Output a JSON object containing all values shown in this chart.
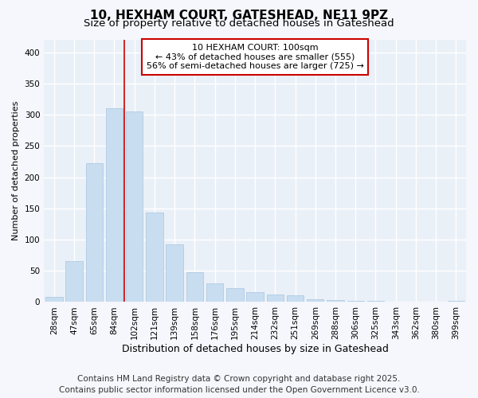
{
  "title": "10, HEXHAM COURT, GATESHEAD, NE11 9PZ",
  "subtitle": "Size of property relative to detached houses in Gateshead",
  "xlabel": "Distribution of detached houses by size in Gateshead",
  "ylabel": "Number of detached properties",
  "categories": [
    "28sqm",
    "47sqm",
    "65sqm",
    "84sqm",
    "102sqm",
    "121sqm",
    "139sqm",
    "158sqm",
    "176sqm",
    "195sqm",
    "214sqm",
    "232sqm",
    "251sqm",
    "269sqm",
    "288sqm",
    "306sqm",
    "325sqm",
    "343sqm",
    "362sqm",
    "380sqm",
    "399sqm"
  ],
  "values": [
    8,
    65,
    222,
    310,
    305,
    143,
    93,
    48,
    30,
    22,
    16,
    12,
    11,
    4,
    3,
    2,
    2,
    1,
    1,
    1,
    2
  ],
  "bar_color": "#c8ddf0",
  "bar_edge_color": "#a8c4e0",
  "highlight_index": 4,
  "highlight_line_color": "#cc0000",
  "annotation_text": "10 HEXHAM COURT: 100sqm\n← 43% of detached houses are smaller (555)\n56% of semi-detached houses are larger (725) →",
  "annotation_box_color": "#ffffff",
  "annotation_box_edge": "#cc0000",
  "ylim": [
    0,
    420
  ],
  "yticks": [
    0,
    50,
    100,
    150,
    200,
    250,
    300,
    350,
    400
  ],
  "footer_line1": "Contains HM Land Registry data © Crown copyright and database right 2025.",
  "footer_line2": "Contains public sector information licensed under the Open Government Licence v3.0.",
  "bg_color": "#f5f7fc",
  "plot_bg_color": "#eaf0f8",
  "grid_color": "#ffffff",
  "title_fontsize": 11,
  "subtitle_fontsize": 9.5,
  "xlabel_fontsize": 9,
  "ylabel_fontsize": 8,
  "tick_fontsize": 7.5,
  "footer_fontsize": 7.5
}
